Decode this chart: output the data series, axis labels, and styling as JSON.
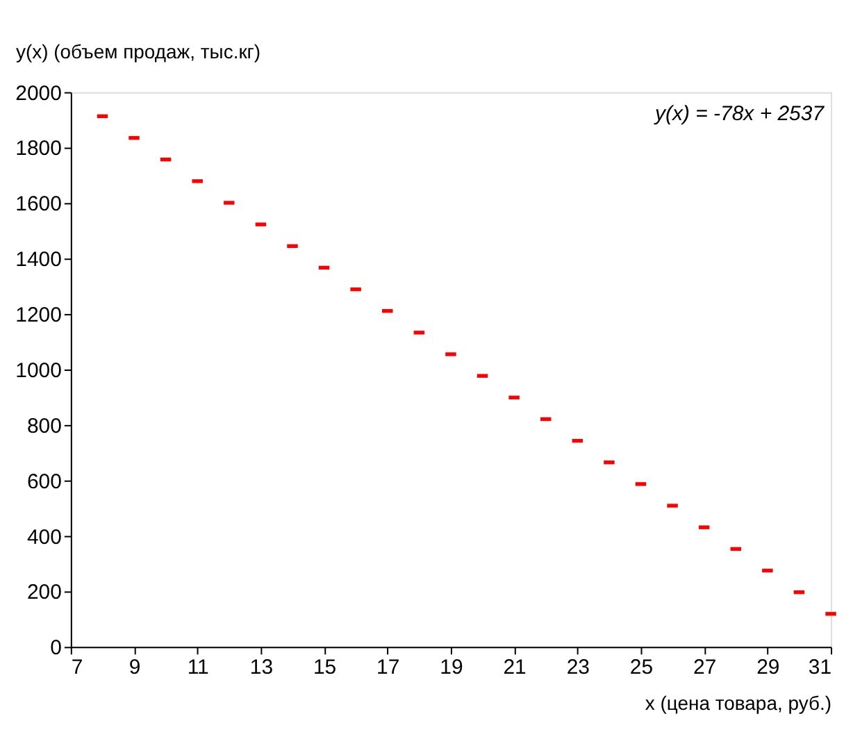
{
  "chart_data": {
    "type": "scatter",
    "xlabel": "x (цена товара, руб.)",
    "ylabel": "y(x) (объем продаж, тыс.кг)",
    "annotations": [
      "y(x) = -78x + 2537"
    ],
    "x": [
      8,
      9,
      10,
      11,
      12,
      13,
      14,
      15,
      16,
      17,
      18,
      19,
      20,
      21,
      22,
      23,
      24,
      25,
      26,
      27,
      28,
      29,
      30,
      31
    ],
    "series": [
      {
        "color": "#ff0000",
        "values": [
          1913,
          1835,
          1757,
          1679,
          1601,
          1523,
          1445,
          1367,
          1289,
          1211,
          1133,
          1055,
          977,
          899,
          821,
          743,
          665,
          587,
          509,
          431,
          353,
          275,
          197,
          119
        ]
      }
    ],
    "xlim": [
      7,
      31
    ],
    "xticks": [
      7,
      9,
      11,
      13,
      15,
      17,
      19,
      21,
      23,
      25,
      27,
      29,
      31
    ],
    "ylim": [
      0,
      2000
    ],
    "yticks": [
      0,
      200,
      400,
      600,
      800,
      1000,
      1200,
      1400,
      1600,
      1800,
      2000
    ],
    "grid": false,
    "legend": false
  }
}
